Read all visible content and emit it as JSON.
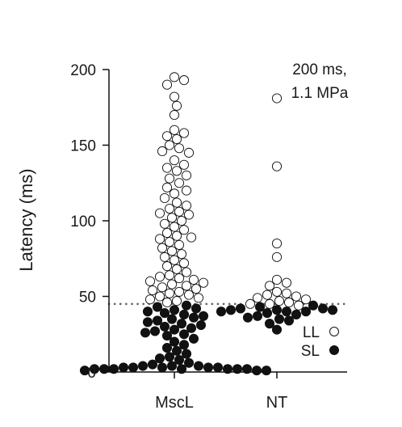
{
  "chart_data": {
    "type": "scatter",
    "ylabel": "Latency (ms)",
    "ylim": [
      0,
      200
    ],
    "yticks": [
      0,
      50,
      100,
      150,
      200
    ],
    "categories": [
      "MscL",
      "NT"
    ],
    "annotation": [
      "200 ms,",
      "1.1 MPa"
    ],
    "threshold": 45,
    "legend": [
      {
        "label": "LL",
        "fill": "#ffffff"
      },
      {
        "label": "SL",
        "fill": "#111111"
      }
    ],
    "legend_position": "bottom-right",
    "series": [
      {
        "name": "LL",
        "fill": "#ffffff",
        "stroke": "#111111",
        "points": [
          [
            "MscL",
            195
          ],
          [
            "MscL",
            193
          ],
          [
            "MscL",
            190
          ],
          [
            "MscL",
            182
          ],
          [
            "MscL",
            176
          ],
          [
            "MscL",
            170
          ],
          [
            "MscL",
            160
          ],
          [
            "MscL",
            158
          ],
          [
            "MscL",
            156
          ],
          [
            "MscL",
            154
          ],
          [
            "MscL",
            150
          ],
          [
            "MscL",
            148
          ],
          [
            "MscL",
            146
          ],
          [
            "MscL",
            145
          ],
          [
            "MscL",
            140
          ],
          [
            "MscL",
            137
          ],
          [
            "MscL",
            135
          ],
          [
            "MscL",
            133
          ],
          [
            "MscL",
            130
          ],
          [
            "MscL",
            128
          ],
          [
            "MscL",
            125
          ],
          [
            "MscL",
            122
          ],
          [
            "MscL",
            120
          ],
          [
            "MscL",
            118
          ],
          [
            "MscL",
            115
          ],
          [
            "MscL",
            112
          ],
          [
            "MscL",
            110
          ],
          [
            "MscL",
            108
          ],
          [
            "MscL",
            106
          ],
          [
            "MscL",
            105
          ],
          [
            "MscL",
            104
          ],
          [
            "MscL",
            102
          ],
          [
            "MscL",
            100
          ],
          [
            "MscL",
            98
          ],
          [
            "MscL",
            96
          ],
          [
            "MscL",
            94
          ],
          [
            "MscL",
            92
          ],
          [
            "MscL",
            90
          ],
          [
            "MscL",
            89
          ],
          [
            "MscL",
            88
          ],
          [
            "MscL",
            86
          ],
          [
            "MscL",
            84
          ],
          [
            "MscL",
            82
          ],
          [
            "MscL",
            80
          ],
          [
            "MscL",
            78
          ],
          [
            "MscL",
            76
          ],
          [
            "MscL",
            74
          ],
          [
            "MscL",
            72
          ],
          [
            "MscL",
            70
          ],
          [
            "MscL",
            68
          ],
          [
            "MscL",
            66
          ],
          [
            "MscL",
            64
          ],
          [
            "MscL",
            63
          ],
          [
            "MscL",
            62
          ],
          [
            "MscL",
            61
          ],
          [
            "MscL",
            60
          ],
          [
            "MscL",
            59
          ],
          [
            "MscL",
            58
          ],
          [
            "MscL",
            57
          ],
          [
            "MscL",
            56
          ],
          [
            "MscL",
            55
          ],
          [
            "MscL",
            54
          ],
          [
            "MscL",
            53
          ],
          [
            "MscL",
            52
          ],
          [
            "MscL",
            51
          ],
          [
            "MscL",
            50
          ],
          [
            "MscL",
            49
          ],
          [
            "MscL",
            48
          ],
          [
            "MscL",
            47
          ],
          [
            "MscL",
            46
          ],
          [
            "NT",
            181
          ],
          [
            "NT",
            136
          ],
          [
            "NT",
            85
          ],
          [
            "NT",
            76
          ],
          [
            "NT",
            61
          ],
          [
            "NT",
            59
          ],
          [
            "NT",
            57
          ],
          [
            "NT",
            53
          ],
          [
            "NT",
            52
          ],
          [
            "NT",
            51
          ],
          [
            "NT",
            50
          ],
          [
            "NT",
            49
          ],
          [
            "NT",
            48
          ],
          [
            "NT",
            47
          ],
          [
            "NT",
            46
          ],
          [
            "NT",
            45
          ],
          [
            "NT",
            45
          ],
          [
            "NT",
            44
          ]
        ]
      },
      {
        "name": "SL",
        "fill": "#111111",
        "stroke": "#111111",
        "points": [
          [
            "MscL",
            44
          ],
          [
            "MscL",
            43
          ],
          [
            "MscL",
            42
          ],
          [
            "MscL",
            41
          ],
          [
            "MscL",
            40
          ],
          [
            "MscL",
            39
          ],
          [
            "MscL",
            38
          ],
          [
            "MscL",
            37
          ],
          [
            "MscL",
            36
          ],
          [
            "MscL",
            35
          ],
          [
            "MscL",
            34
          ],
          [
            "MscL",
            33
          ],
          [
            "MscL",
            32
          ],
          [
            "MscL",
            31
          ],
          [
            "MscL",
            30
          ],
          [
            "MscL",
            29
          ],
          [
            "MscL",
            28
          ],
          [
            "MscL",
            27
          ],
          [
            "MscL",
            26
          ],
          [
            "MscL",
            25
          ],
          [
            "MscL",
            24
          ],
          [
            "MscL",
            22
          ],
          [
            "MscL",
            20
          ],
          [
            "MscL",
            18
          ],
          [
            "MscL",
            16
          ],
          [
            "MscL",
            14
          ],
          [
            "MscL",
            12
          ],
          [
            "MscL",
            10
          ],
          [
            "MscL",
            9
          ],
          [
            "MscL",
            8
          ],
          [
            "MscL",
            6
          ],
          [
            "MscL",
            5
          ],
          [
            "MscL",
            4
          ],
          [
            "MscL",
            4
          ],
          [
            "MscL",
            4
          ],
          [
            "MscL",
            3
          ],
          [
            "MscL",
            3
          ],
          [
            "MscL",
            3
          ],
          [
            "MscL",
            3
          ],
          [
            "MscL",
            3
          ],
          [
            "MscL",
            2
          ],
          [
            "MscL",
            2
          ],
          [
            "MscL",
            2
          ],
          [
            "MscL",
            2
          ],
          [
            "MscL",
            2
          ],
          [
            "MscL",
            2
          ],
          [
            "MscL",
            2
          ],
          [
            "MscL",
            1
          ],
          [
            "MscL",
            1
          ],
          [
            "MscL",
            1
          ],
          [
            "NT",
            44
          ],
          [
            "NT",
            43
          ],
          [
            "NT",
            42
          ],
          [
            "NT",
            42
          ],
          [
            "NT",
            41
          ],
          [
            "NT",
            41
          ],
          [
            "NT",
            41
          ],
          [
            "NT",
            40
          ],
          [
            "NT",
            40
          ],
          [
            "NT",
            40
          ],
          [
            "NT",
            39
          ],
          [
            "NT",
            38
          ],
          [
            "NT",
            37
          ],
          [
            "NT",
            36
          ],
          [
            "NT",
            35
          ],
          [
            "NT",
            34
          ],
          [
            "NT",
            32
          ],
          [
            "NT",
            28
          ]
        ]
      }
    ]
  }
}
